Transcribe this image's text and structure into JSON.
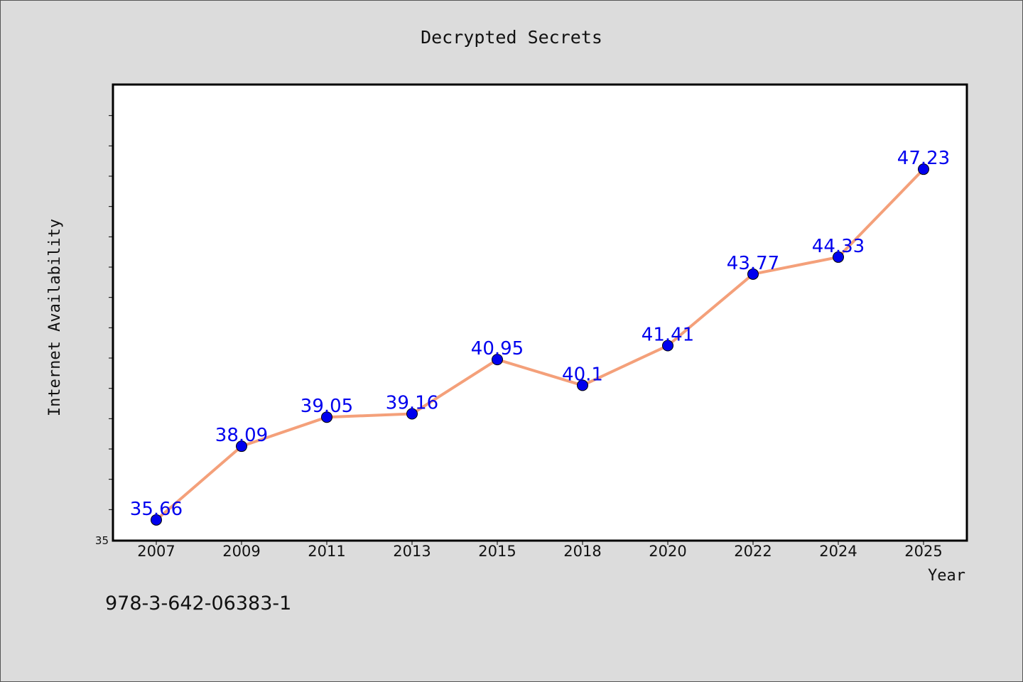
{
  "chart_data": {
    "type": "line",
    "title": "Decrypted Secrets",
    "xlabel": "Year",
    "ylabel": "Internet Availability",
    "categories": [
      "2007",
      "2009",
      "2011",
      "2013",
      "2015",
      "2018",
      "2020",
      "2022",
      "2024",
      "2025"
    ],
    "series": [
      {
        "values": [
          35.66,
          38.09,
          39.05,
          39.16,
          40.95,
          40.1,
          41.41,
          43.77,
          44.33,
          47.23
        ]
      }
    ],
    "point_labels": [
      "35.66",
      "38.09",
      "39.05",
      "39.16",
      "40.95",
      "40.1",
      "41.41",
      "43.77",
      "44.33",
      "47.23"
    ],
    "yaxis_tick_label": "35",
    "ylim": [
      35,
      50
    ],
    "grid": false,
    "legend": false,
    "line_color": "#f4a07a",
    "marker_color": "#0000ee",
    "label_color": "#0000ee"
  },
  "footer": {
    "isbn": "978-3-642-06383-1"
  }
}
